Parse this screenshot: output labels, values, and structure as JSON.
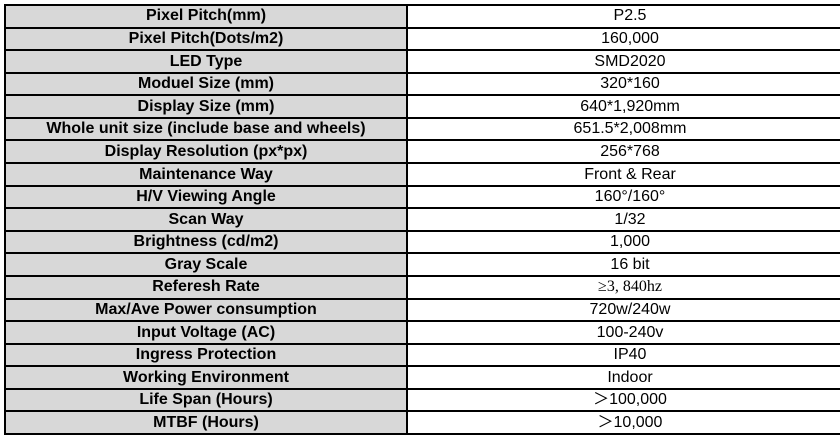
{
  "table": {
    "colors": {
      "label_background": "#d8d8d8",
      "value_background": "#ffffff",
      "border": "#000000",
      "text": "#000000"
    },
    "rows": [
      {
        "label": "Pixel Pitch(mm)",
        "value": "P2.5"
      },
      {
        "label": "Pixel Pitch(Dots/m2)",
        "value": "160,000"
      },
      {
        "label": "LED Type",
        "value": "SMD2020"
      },
      {
        "label": "Moduel Size (mm)",
        "value": "320*160"
      },
      {
        "label": "Display Size (mm)",
        "value": "640*1,920mm"
      },
      {
        "label": "Whole unit size (include base and wheels)",
        "value": "651.5*2,008mm"
      },
      {
        "label": "Display Resolution (px*px)",
        "value": "256*768"
      },
      {
        "label": "Maintenance Way",
        "value": "Front & Rear"
      },
      {
        "label": "H/V Viewing Angle",
        "value": "160°/160°"
      },
      {
        "label": "Scan Way",
        "value": "1/32"
      },
      {
        "label": "Brightness (cd/m2)",
        "value": "1,000"
      },
      {
        "label": "Gray Scale",
        "value": "16 bit"
      },
      {
        "label": "Referesh Rate",
        "value": "≥3, 840hz"
      },
      {
        "label": "Max/Ave Power consumption",
        "value": "720w/240w"
      },
      {
        "label": "Input Voltage (AC)",
        "value": "100-240v"
      },
      {
        "label": "Ingress Protection",
        "value": "IP40"
      },
      {
        "label": "Working Environment",
        "value": "Indoor"
      },
      {
        "label": "Life Span (Hours)",
        "value": "＞100,000"
      },
      {
        "label": "MTBF (Hours)",
        "value": "＞10,000"
      }
    ]
  }
}
